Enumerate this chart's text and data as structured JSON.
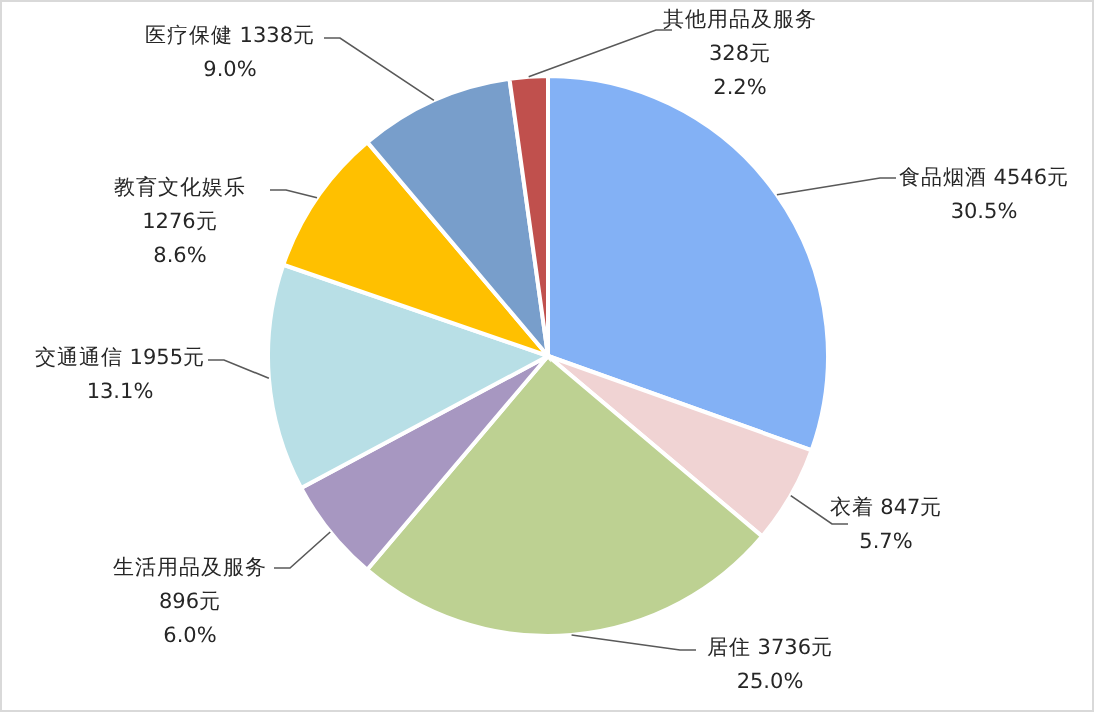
{
  "chart_data": {
    "type": "pie",
    "categories": [
      "食品烟酒",
      "衣着",
      "居住",
      "生活用品及服务",
      "交通通信",
      "教育文化娱乐",
      "医疗保健",
      "其他用品及服务"
    ],
    "values": [
      4546,
      847,
      3736,
      896,
      1955,
      1276,
      1338,
      328
    ],
    "value_labels": [
      "4546元\n30.5%",
      "847元\n5.7%",
      "3736元\n25.0%",
      "896元\n6.0%",
      "1955元\n13.1%",
      "1276元\n8.6%",
      "1338元\n9.0%",
      "328元\n2.2%"
    ],
    "colors": [
      "#83b1f5",
      "#f0d3d3",
      "#bdd192",
      "#a797c1",
      "#b8dfe6",
      "#ffc000",
      "#789ecb",
      "#c0504d"
    ]
  }
}
